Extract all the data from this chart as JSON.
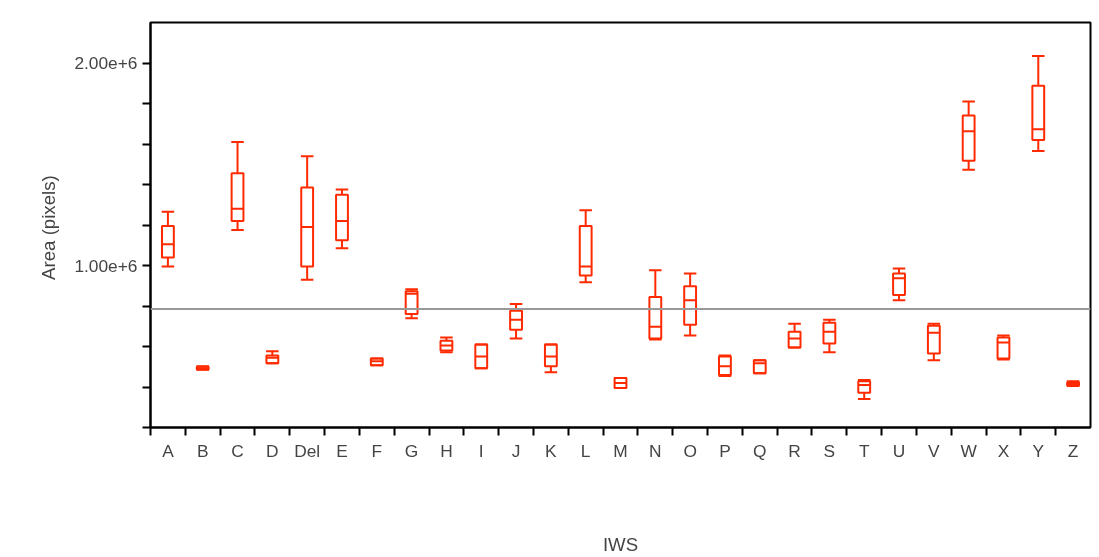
{
  "chart_data": {
    "type": "box",
    "xlabel": "IWS",
    "ylabel": "Area  (pixels)",
    "color": "#ff2a00",
    "categories": [
      "A",
      "B",
      "C",
      "D",
      "Del",
      "E",
      "F",
      "G",
      "H",
      "I",
      "J",
      "K",
      "L",
      "M",
      "N",
      "O",
      "P",
      "Q",
      "R",
      "S",
      "T",
      "U",
      "V",
      "W",
      "X",
      "Y",
      "Z"
    ],
    "boxes": [
      {
        "low": 995000,
        "q1": 1040000,
        "median": 1105000,
        "q3": 1195000,
        "high": 1265000
      },
      {
        "low": 485000,
        "q1": 487000,
        "median": 493000,
        "q3": 500000,
        "high": 502000
      },
      {
        "low": 1175000,
        "q1": 1220000,
        "median": 1280000,
        "q3": 1455000,
        "high": 1610000
      },
      {
        "low": 517000,
        "q1": 517000,
        "median": 545000,
        "q3": 556000,
        "high": 576000
      },
      {
        "low": 930000,
        "q1": 995000,
        "median": 1190000,
        "q3": 1385000,
        "high": 1540000
      },
      {
        "low": 1085000,
        "q1": 1125000,
        "median": 1220000,
        "q3": 1350000,
        "high": 1375000
      },
      {
        "low": 507000,
        "q1": 507000,
        "median": 527000,
        "q3": 541000,
        "high": 541000
      },
      {
        "low": 740000,
        "q1": 760000,
        "median": 860000,
        "q3": 873000,
        "high": 883000
      },
      {
        "low": 571000,
        "q1": 580000,
        "median": 605000,
        "q3": 629000,
        "high": 644000
      },
      {
        "low": 493000,
        "q1": 493000,
        "median": 551000,
        "q3": 610000,
        "high": 610000
      },
      {
        "low": 639000,
        "q1": 683000,
        "median": 732000,
        "q3": 776000,
        "high": 810000
      },
      {
        "low": 473000,
        "q1": 502000,
        "median": 551000,
        "q3": 610000,
        "high": 610000
      },
      {
        "low": 917000,
        "q1": 951000,
        "median": 995000,
        "q3": 1195000,
        "high": 1273000
      },
      {
        "low": 395000,
        "q1": 395000,
        "median": 420000,
        "q3": 444000,
        "high": 444000
      },
      {
        "low": 634000,
        "q1": 639000,
        "median": 698000,
        "q3": 844000,
        "high": 976000
      },
      {
        "low": 654000,
        "q1": 707000,
        "median": 829000,
        "q3": 898000,
        "high": 961000
      },
      {
        "low": 454000,
        "q1": 459000,
        "median": 502000,
        "q3": 551000,
        "high": 556000
      },
      {
        "low": 468000,
        "q1": 468000,
        "median": 517000,
        "q3": 532000,
        "high": 532000
      },
      {
        "low": 595000,
        "q1": 595000,
        "median": 639000,
        "q3": 673000,
        "high": 712000
      },
      {
        "low": 571000,
        "q1": 615000,
        "median": 673000,
        "q3": 717000,
        "high": 732000
      },
      {
        "low": 341000,
        "q1": 371000,
        "median": 410000,
        "q3": 429000,
        "high": 434000
      },
      {
        "low": 829000,
        "q1": 854000,
        "median": 937000,
        "q3": 961000,
        "high": 985000
      },
      {
        "low": 532000,
        "q1": 566000,
        "median": 668000,
        "q3": 702000,
        "high": 712000
      },
      {
        "low": 1473000,
        "q1": 1517000,
        "median": 1663000,
        "q3": 1741000,
        "high": 1810000
      },
      {
        "low": 536000,
        "q1": 541000,
        "median": 620000,
        "q3": 644000,
        "high": 654000
      },
      {
        "low": 1566000,
        "q1": 1620000,
        "median": 1673000,
        "q3": 1888000,
        "high": 2034000
      },
      {
        "low": 405000,
        "q1": 407000,
        "median": 415000,
        "q3": 424000,
        "high": 429000
      }
    ],
    "ylim": [
      200000,
      2200000
    ],
    "yticks": [
      {
        "value": 200000,
        "label": null
      },
      {
        "value": 400000,
        "label": null
      },
      {
        "value": 600000,
        "label": null
      },
      {
        "value": 800000,
        "label": null
      },
      {
        "value": 1000000,
        "label": "1.00e+6"
      },
      {
        "value": 1200000,
        "label": null
      },
      {
        "value": 1400000,
        "label": null
      },
      {
        "value": 1600000,
        "label": null
      },
      {
        "value": 1800000,
        "label": null
      },
      {
        "value": 2000000,
        "label": "2.00e+6"
      }
    ],
    "ref_lines": [
      {
        "axis": "y",
        "value": 785000,
        "color": "#999999"
      }
    ]
  }
}
